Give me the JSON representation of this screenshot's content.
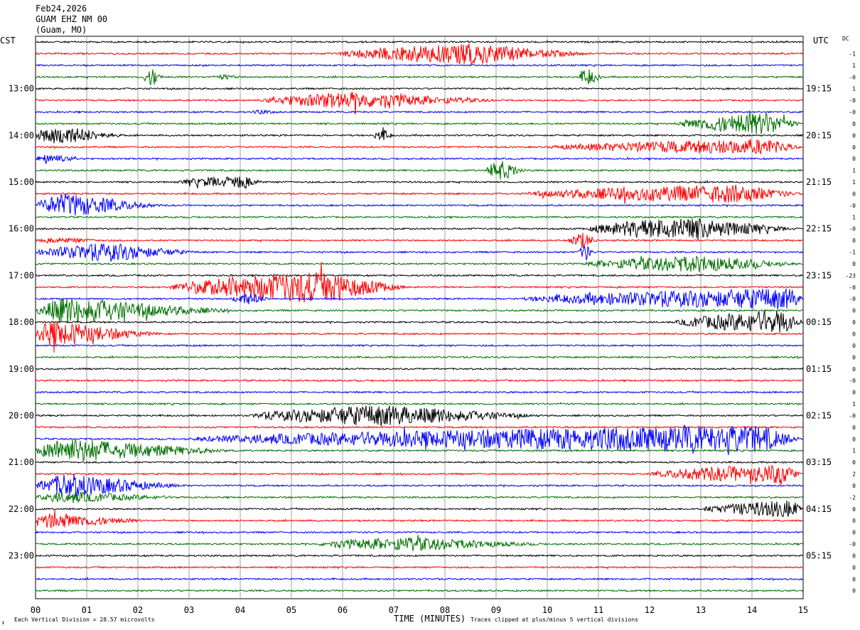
{
  "header": {
    "date": "Feb24,2026",
    "station": "GUAM EHZ NM 00",
    "location": "(Guam, MO)"
  },
  "left_timezone": "CST",
  "right_timezone": "UTC",
  "dc_label": "DC",
  "footer": {
    "corner_mark": "↕",
    "scale_note": "Each Vertical Division =   28.57 microvolts",
    "x_title": "TIME (MINUTES)",
    "clip_note": "Traces clipped at plus/minus 5 vertical divisions"
  },
  "colors": {
    "trace_cycle": [
      "#000000",
      "#ff0000",
      "#0000ff",
      "#007000"
    ],
    "grid": "#8a8a8a"
  },
  "chart_data": {
    "type": "line",
    "title": "GUAM EHZ NM 00",
    "xlabel": "TIME (MINUTES)",
    "xlim": [
      0,
      15
    ],
    "x_ticks": [
      "00",
      "01",
      "02",
      "03",
      "04",
      "05",
      "06",
      "07",
      "08",
      "09",
      "10",
      "11",
      "12",
      "13",
      "14",
      "15"
    ],
    "trace_minutes": 15,
    "trace_count": 48,
    "left_hour_labels": [
      "13:00",
      "14:00",
      "15:00",
      "16:00",
      "17:00",
      "18:00",
      "19:00",
      "20:00",
      "21:00",
      "22:00",
      "23:00"
    ],
    "right_hour_labels": [
      "19:15",
      "20:15",
      "21:15",
      "22:15",
      "23:15",
      "00:15",
      "01:15",
      "02:15",
      "03:15",
      "04:15",
      "05:15"
    ],
    "dc_offsets": [
      "-1",
      "1",
      "-0",
      "1",
      "-0",
      "-0",
      "0",
      "0",
      "0",
      "0",
      "1",
      "1",
      "0",
      "-0",
      "1",
      "-0",
      "0",
      "-1",
      "0",
      "-23",
      "-0",
      "-0",
      "0",
      "0",
      "0",
      "0",
      "0",
      "0",
      "-0",
      "0",
      "1",
      "-0",
      "0",
      "0",
      "1",
      "0",
      "2",
      "0",
      "-2",
      "0",
      "0",
      "0",
      "-0",
      "0",
      "0",
      "0",
      "0"
    ],
    "events": [
      {
        "trace": 1,
        "start": 5.9,
        "end": 11,
        "peak": 8.5,
        "amp": 14
      },
      {
        "trace": 3,
        "start": 2.1,
        "end": 2.5,
        "peak": 2.3,
        "amp": 12
      },
      {
        "trace": 3,
        "start": 3.5,
        "end": 4.0,
        "peak": 3.7,
        "amp": 3
      },
      {
        "trace": 3,
        "start": 10.6,
        "end": 11.1,
        "peak": 10.8,
        "amp": 11
      },
      {
        "trace": 5,
        "start": 4.4,
        "end": 9.2,
        "peak": 6.2,
        "amp": 11
      },
      {
        "trace": 6,
        "start": 4.2,
        "end": 4.8,
        "peak": 4.4,
        "amp": 2
      },
      {
        "trace": 7,
        "start": 12.5,
        "end": 15,
        "peak": 14.3,
        "amp": 15
      },
      {
        "trace": 8,
        "start": 0,
        "end": 1.8,
        "peak": 0.4,
        "amp": 14
      },
      {
        "trace": 8,
        "start": 6.6,
        "end": 7.0,
        "peak": 6.8,
        "amp": 8
      },
      {
        "trace": 9,
        "start": 10.0,
        "end": 15,
        "peak": 14.3,
        "amp": 10
      },
      {
        "trace": 10,
        "start": 0,
        "end": 1.0,
        "peak": 0.2,
        "amp": 6
      },
      {
        "trace": 11,
        "start": 8.8,
        "end": 9.6,
        "peak": 9.1,
        "amp": 14
      },
      {
        "trace": 12,
        "start": 2.8,
        "end": 4.5,
        "peak": 4.0,
        "amp": 9
      },
      {
        "trace": 13,
        "start": 9.5,
        "end": 15,
        "peak": 13.8,
        "amp": 12
      },
      {
        "trace": 14,
        "start": 0,
        "end": 2.5,
        "peak": 0.6,
        "amp": 16
      },
      {
        "trace": 16,
        "start": 10.8,
        "end": 15,
        "peak": 12.6,
        "amp": 16
      },
      {
        "trace": 17,
        "start": 0,
        "end": 1.5,
        "peak": 0.5,
        "amp": 3
      },
      {
        "trace": 17,
        "start": 10.4,
        "end": 11.0,
        "peak": 10.7,
        "amp": 11
      },
      {
        "trace": 18,
        "start": 0,
        "end": 3.2,
        "peak": 1.5,
        "amp": 12
      },
      {
        "trace": 18,
        "start": 10.6,
        "end": 10.9,
        "peak": 10.75,
        "amp": 12
      },
      {
        "trace": 19,
        "start": 10.7,
        "end": 15,
        "peak": 13.0,
        "amp": 11
      },
      {
        "trace": 21,
        "start": 2.6,
        "end": 7.3,
        "peak": 5.6,
        "amp": 22
      },
      {
        "trace": 22,
        "start": 3.8,
        "end": 4.6,
        "peak": 4.2,
        "amp": 8
      },
      {
        "trace": 22,
        "start": 9.5,
        "end": 15,
        "peak": 14.8,
        "amp": 14
      },
      {
        "trace": 23,
        "start": 0,
        "end": 4.0,
        "peak": 0.6,
        "amp": 18
      },
      {
        "trace": 24,
        "start": 12.5,
        "end": 15,
        "peak": 14.6,
        "amp": 16
      },
      {
        "trace": 25,
        "start": 0,
        "end": 2.5,
        "peak": 0.3,
        "amp": 18
      },
      {
        "trace": 32,
        "start": 4.2,
        "end": 10.0,
        "peak": 6.8,
        "amp": 14
      },
      {
        "trace": 34,
        "start": 3.0,
        "end": 15,
        "peak": 14.2,
        "amp": 18
      },
      {
        "trace": 35,
        "start": 0,
        "end": 4.0,
        "peak": 0.6,
        "amp": 17
      },
      {
        "trace": 37,
        "start": 12.0,
        "end": 15,
        "peak": 14.6,
        "amp": 13
      },
      {
        "trace": 38,
        "start": 0,
        "end": 3.0,
        "peak": 0.6,
        "amp": 16
      },
      {
        "trace": 39,
        "start": 0,
        "end": 3.0,
        "peak": 0.6,
        "amp": 7
      },
      {
        "trace": 40,
        "start": 13.0,
        "end": 15,
        "peak": 14.8,
        "amp": 12
      },
      {
        "trace": 41,
        "start": 0,
        "end": 2.2,
        "peak": 0.3,
        "amp": 11
      },
      {
        "trace": 43,
        "start": 5.5,
        "end": 10.0,
        "peak": 7.4,
        "amp": 9
      }
    ]
  }
}
